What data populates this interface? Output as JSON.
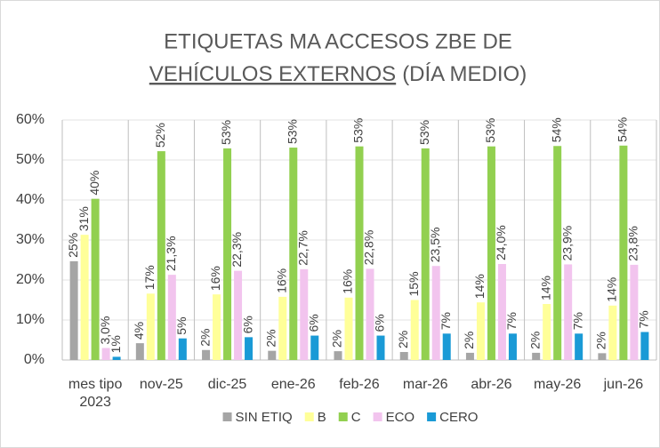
{
  "chart_data": {
    "type": "bar",
    "title": [
      "ETIQUETAS MA ACCESOS ZBE DE",
      "VEHÍCULOS EXTERNOS",
      "(DÍA MEDIO)"
    ],
    "categories": [
      "mes tipo 2023",
      "nov-25",
      "dic-25",
      "ene-26",
      "feb-26",
      "mar-26",
      "abr-26",
      "may-26",
      "jun-26"
    ],
    "series": [
      {
        "name": "SIN ETIQ",
        "color": "#a5a5a5",
        "values": [
          24.7,
          4.2,
          2.5,
          2.3,
          2.2,
          2.0,
          1.8,
          1.8,
          1.7
        ],
        "value_labels": [
          "25%",
          "4%",
          "2%",
          "2%",
          "2%",
          "2%",
          "2%",
          "2%",
          "2%"
        ]
      },
      {
        "name": "B",
        "color": "#ffff99",
        "values": [
          31.3,
          16.6,
          16.4,
          15.8,
          15.6,
          15.0,
          14.4,
          14.0,
          13.6
        ],
        "value_labels": [
          "31%",
          "17%",
          "16%",
          "16%",
          "16%",
          "15%",
          "14%",
          "14%",
          "14%"
        ]
      },
      {
        "name": "C",
        "color": "#92d050",
        "values": [
          40.3,
          52.2,
          52.9,
          53.1,
          53.4,
          52.9,
          53.4,
          53.5,
          53.6
        ],
        "value_labels": [
          "40%",
          "52%",
          "53%",
          "53%",
          "53%",
          "53%",
          "53%",
          "54%",
          "54%"
        ]
      },
      {
        "name": "ECO",
        "color": "#f2c4ee",
        "values": [
          3.0,
          21.3,
          22.3,
          22.7,
          22.8,
          23.5,
          24.0,
          23.9,
          23.8
        ],
        "value_labels": [
          "3,0%",
          "21,3%",
          "22,3%",
          "22,7%",
          "22,8%",
          "23,5%",
          "24,0%",
          "23,9%",
          "23,8%"
        ]
      },
      {
        "name": "CERO",
        "color": "#1a9ad6",
        "values": [
          0.8,
          5.4,
          5.7,
          6.1,
          6.1,
          6.6,
          6.6,
          6.6,
          7.0
        ],
        "value_labels": [
          "1%",
          "5%",
          "6%",
          "6%",
          "6%",
          "7%",
          "7%",
          "7%",
          "7%"
        ]
      }
    ],
    "ylim": [
      0,
      60
    ],
    "yticks": [
      {
        "value": 0,
        "label": "0%"
      },
      {
        "value": 10,
        "label": "10%"
      },
      {
        "value": 20,
        "label": "20%"
      },
      {
        "value": 30,
        "label": "30%"
      },
      {
        "value": 40,
        "label": "40%"
      },
      {
        "value": 50,
        "label": "50%"
      },
      {
        "value": 60,
        "label": "60%"
      }
    ],
    "grid": true,
    "legend": "bottom"
  }
}
